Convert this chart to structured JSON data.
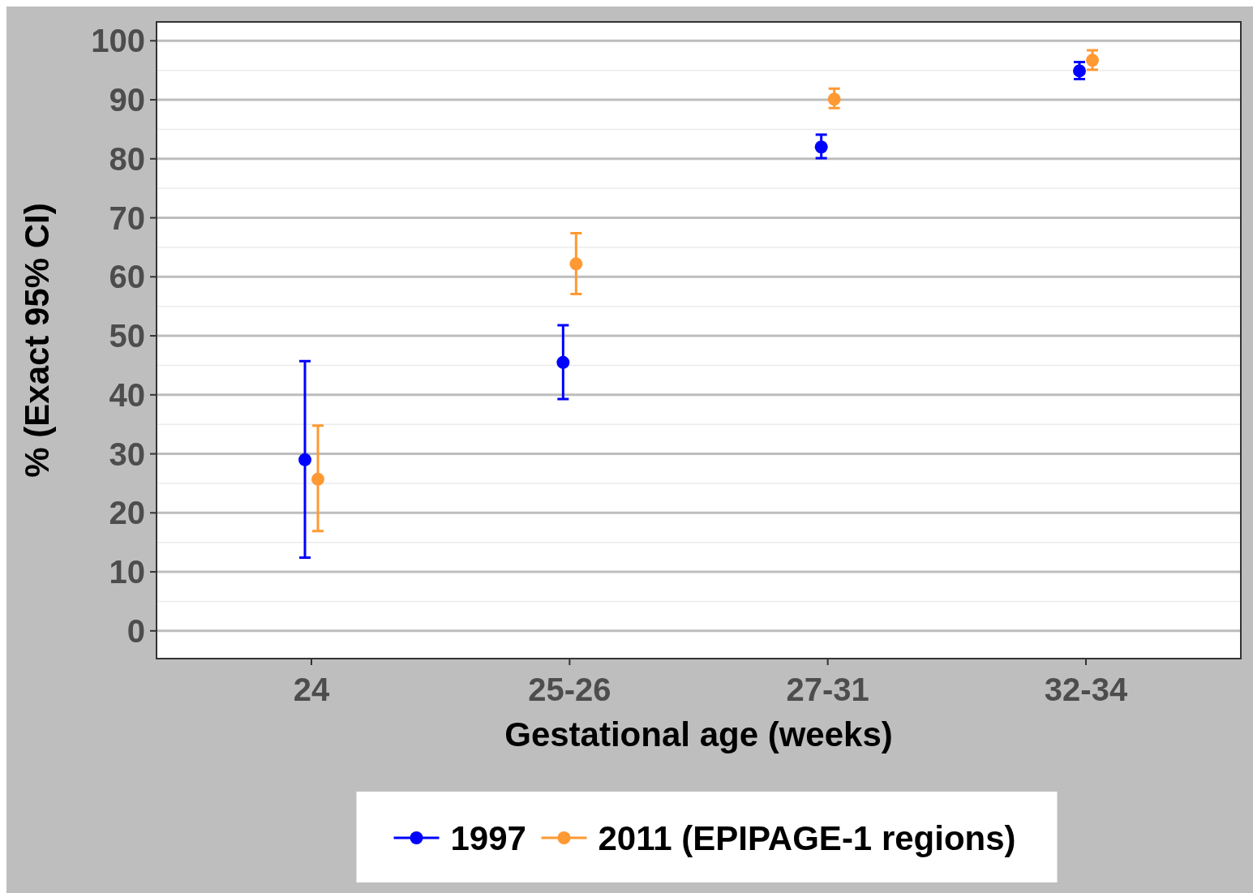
{
  "chart_data": {
    "type": "scatter",
    "xlabel": "Gestational age (weeks)",
    "ylabel": "% (Exact 95% CI)",
    "categories": [
      "24",
      "25-26",
      "27-31",
      "32-34"
    ],
    "ylim": [
      -4.7,
      103.2
    ],
    "yticks": [
      0,
      10,
      20,
      30,
      40,
      50,
      60,
      70,
      80,
      90,
      100
    ],
    "grid": "y",
    "legend": "bottom",
    "marker": "circle",
    "series": [
      {
        "name": "1997",
        "color": "#0000ff",
        "values": [
          29.0,
          45.5,
          82.0,
          94.9
        ],
        "errors": [
          [
            12.4,
            45.7
          ],
          [
            39.3,
            51.8
          ],
          [
            80.1,
            84.1
          ],
          [
            93.5,
            96.4
          ]
        ]
      },
      {
        "name": "2011 (EPIPAGE-1 regions)",
        "color": "#ff9933",
        "values": [
          25.7,
          62.2,
          90.1,
          96.7
        ],
        "errors": [
          [
            16.9,
            34.8
          ],
          [
            57.1,
            67.4
          ],
          [
            88.6,
            91.9
          ],
          [
            95.1,
            98.4
          ]
        ]
      }
    ]
  }
}
